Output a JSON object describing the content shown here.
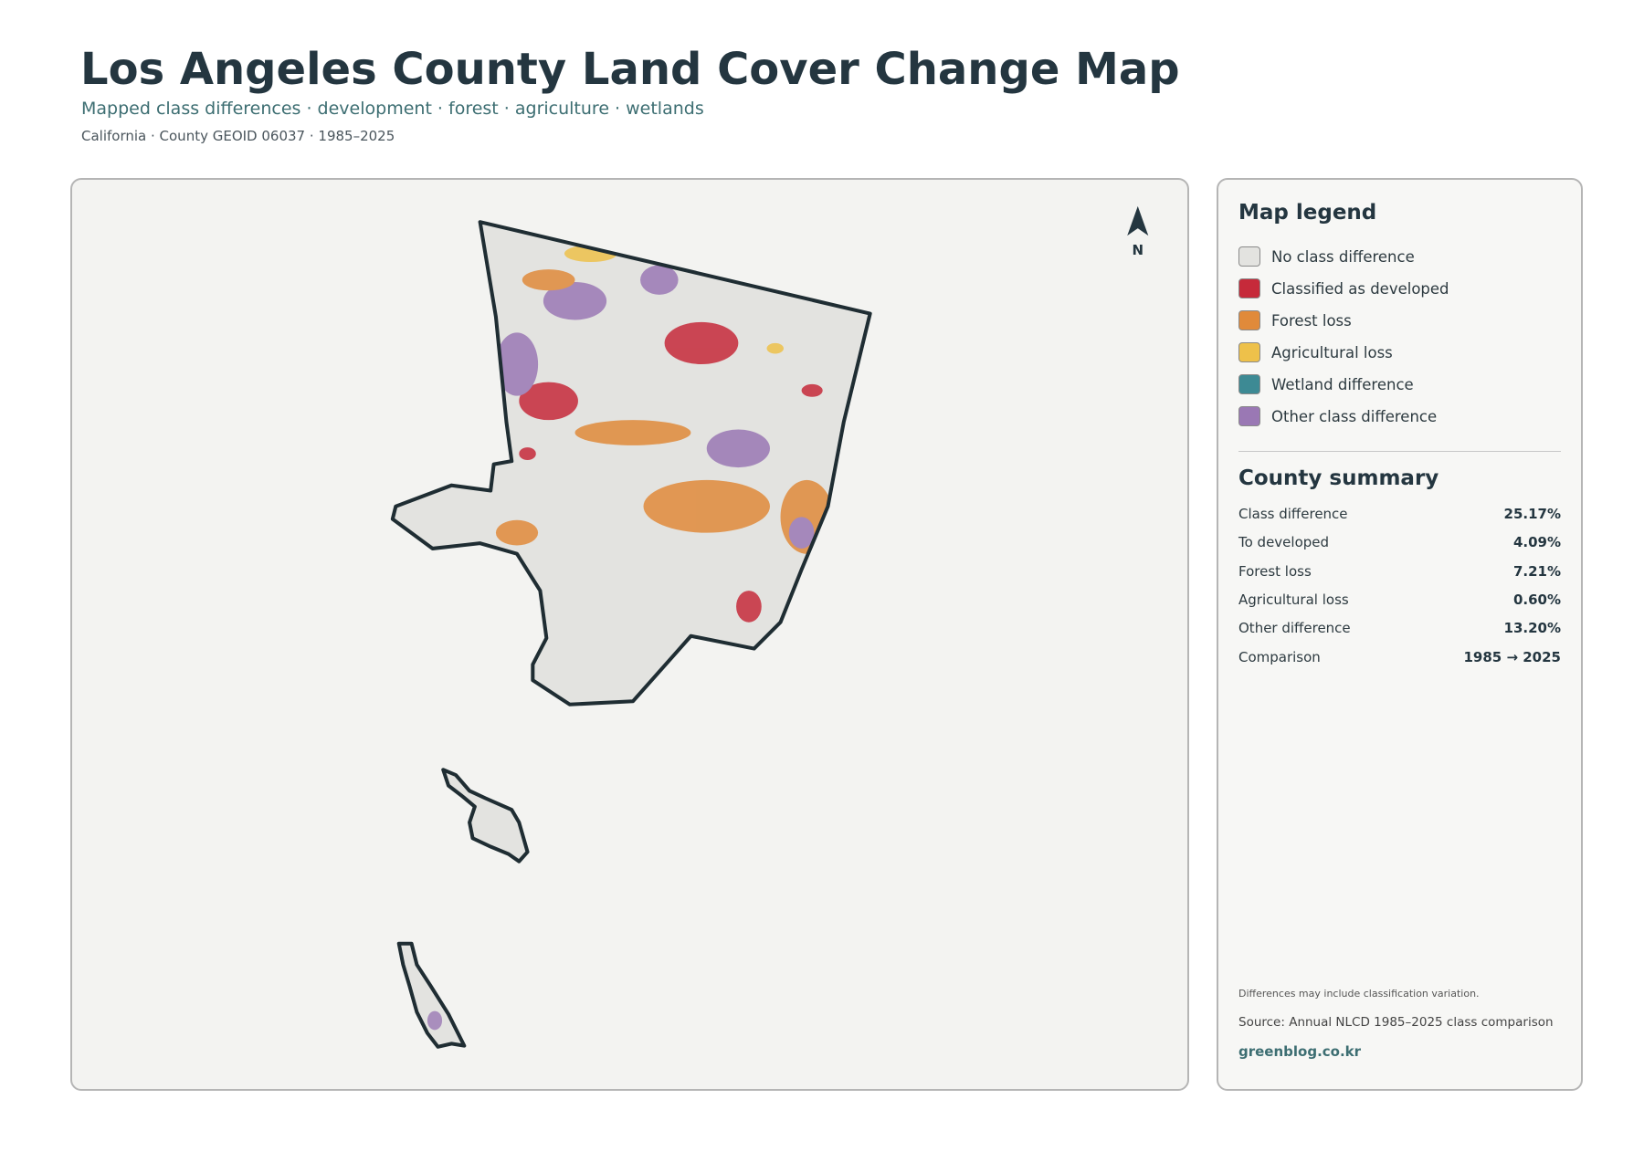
{
  "header": {
    "title": "Los Angeles County Land Cover Change Map",
    "subtitle": "Mapped class differences · development · forest · agriculture · wetlands",
    "meta": "California · County GEOID 06037 · 1985–2025"
  },
  "map": {
    "north_label": "N"
  },
  "legend": {
    "title": "Map legend",
    "items": [
      {
        "label": "No class difference",
        "color": "#e3e3e0"
      },
      {
        "label": "Classified as developed",
        "color": "#c62a3a"
      },
      {
        "label": "Forest loss",
        "color": "#e08a3a"
      },
      {
        "label": "Agricultural loss",
        "color": "#eec14a"
      },
      {
        "label": "Wetland difference",
        "color": "#3d8a94"
      },
      {
        "label": "Other class difference",
        "color": "#9a78b4"
      }
    ]
  },
  "summary": {
    "title": "County summary",
    "rows": [
      [
        "Class difference",
        "25.17%"
      ],
      [
        "To developed",
        "4.09%"
      ],
      [
        "Forest loss",
        "7.21%"
      ],
      [
        "Agricultural loss",
        "0.60%"
      ],
      [
        "Other difference",
        "13.20%"
      ],
      [
        "Comparison",
        "1985 → 2025"
      ]
    ]
  },
  "footer": {
    "note": "Differences may include classification variation.",
    "source": "Source: Annual NLCD 1985–2025 class comparison",
    "link": "greenblog.co.kr"
  }
}
